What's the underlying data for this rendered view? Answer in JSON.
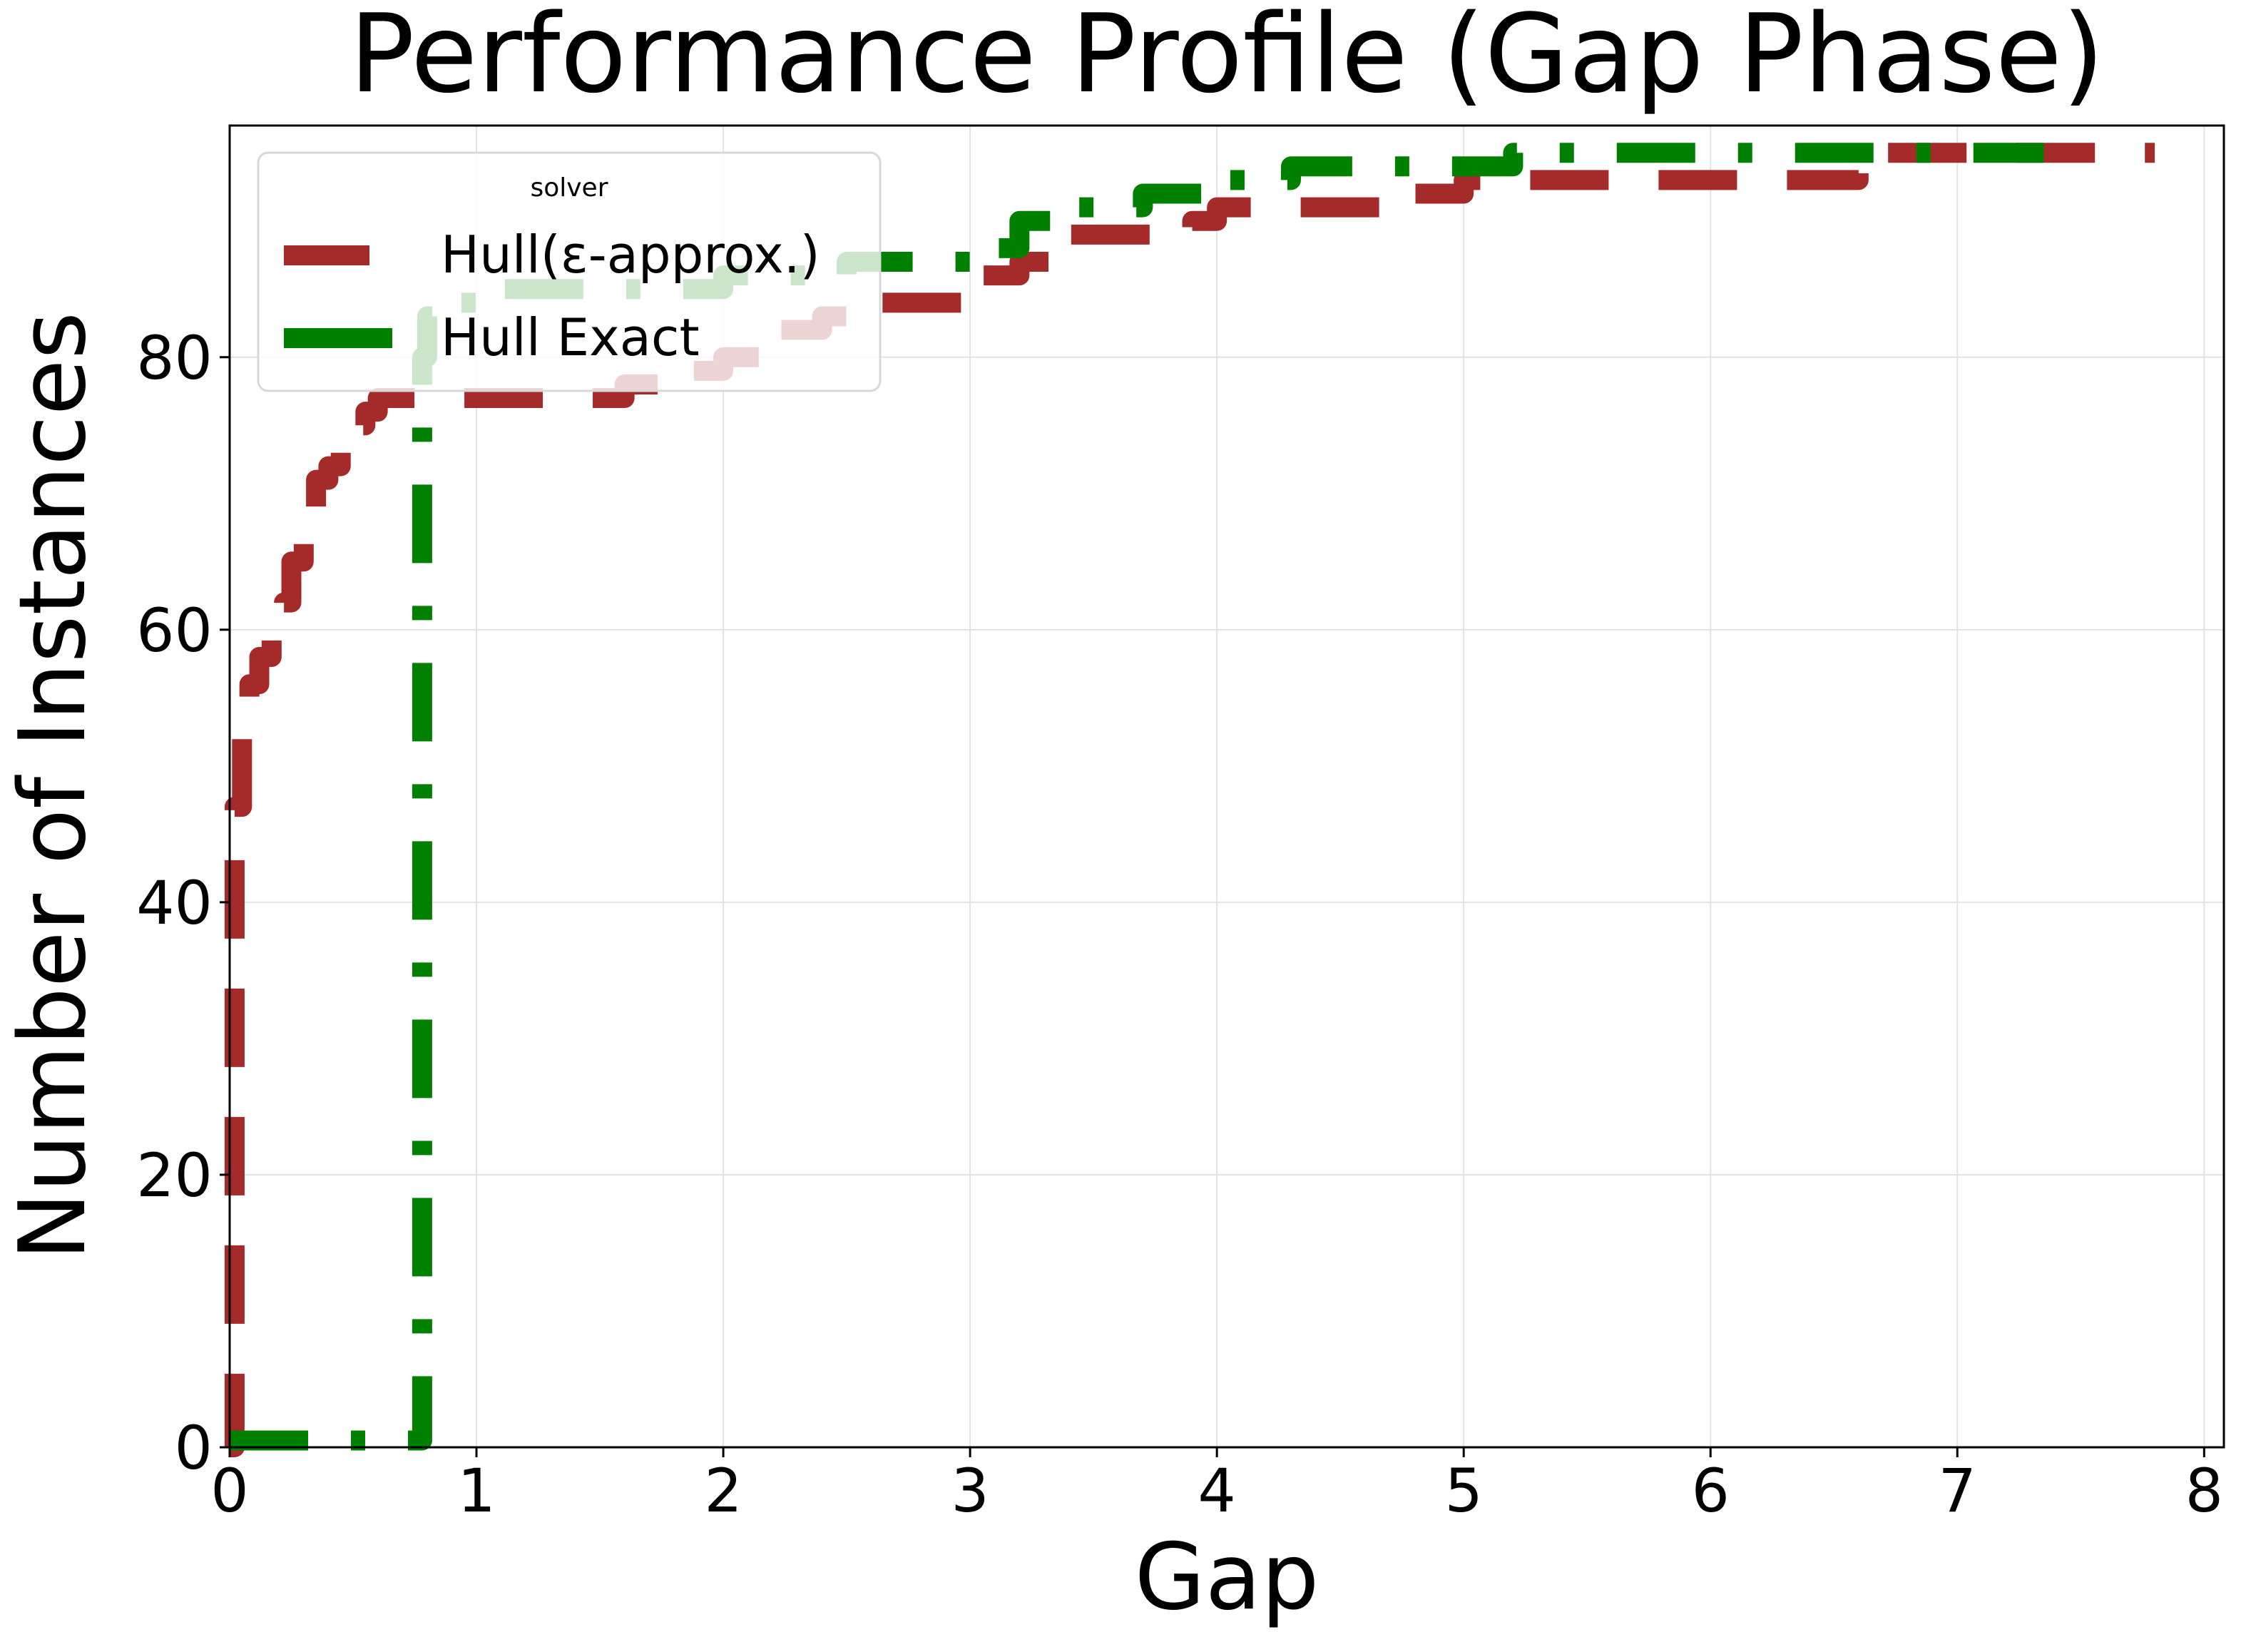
{
  "chart_data": {
    "type": "line",
    "step": true,
    "title": "Performance Profile (Gap Phase)",
    "xlabel": "Gap",
    "ylabel": "Number of Instances",
    "xlim": [
      0,
      8.08
    ],
    "ylim": [
      0,
      97
    ],
    "xticks": [
      0,
      1,
      2,
      3,
      4,
      5,
      6,
      7,
      8
    ],
    "yticks": [
      0,
      20,
      40,
      60,
      80
    ],
    "grid": true,
    "legend": {
      "title": "solver",
      "position": "top-left"
    },
    "series": [
      {
        "name": "Hull(ε-approx.)",
        "color": "#a52a2a",
        "dash": "dashed",
        "x": [
          0,
          0.02,
          0.05,
          0.08,
          0.12,
          0.17,
          0.22,
          0.25,
          0.3,
          0.35,
          0.4,
          0.45,
          0.5,
          0.55,
          0.6,
          1.0,
          1.5,
          1.6,
          1.8,
          2.0,
          2.2,
          2.4,
          2.6,
          2.9,
          3.0,
          3.2,
          3.4,
          3.6,
          3.9,
          4.0,
          4.2,
          4.8,
          5.0,
          6.0,
          6.4,
          6.6,
          7.0,
          7.8
        ],
        "y": [
          0,
          47,
          55,
          56,
          58,
          60,
          62,
          65,
          69,
          71,
          72,
          73,
          75,
          76,
          77,
          77,
          77,
          78,
          79,
          80,
          82,
          83,
          84,
          84,
          86,
          87,
          89,
          89,
          90,
          91,
          91,
          92,
          93,
          93,
          93,
          95,
          95,
          95
        ]
      },
      {
        "name": "Hull Exact",
        "color": "#008000",
        "dash": "dash-dot",
        "x": [
          0,
          0.7,
          0.78,
          0.8,
          0.85,
          0.9,
          1.0,
          1.3,
          1.5,
          1.7,
          2.0,
          2.2,
          2.5,
          2.7,
          3.0,
          3.2,
          3.4,
          3.7,
          4.0,
          4.3,
          4.7,
          5.0,
          5.2,
          5.8,
          6.5,
          7.0,
          7.35
        ],
        "y": [
          0.5,
          0.5,
          80,
          83,
          84,
          84,
          85,
          85,
          85,
          85,
          86,
          86,
          87,
          87,
          88,
          90,
          91,
          92,
          93,
          94,
          94,
          94,
          95,
          95,
          95,
          95,
          95
        ]
      }
    ]
  }
}
